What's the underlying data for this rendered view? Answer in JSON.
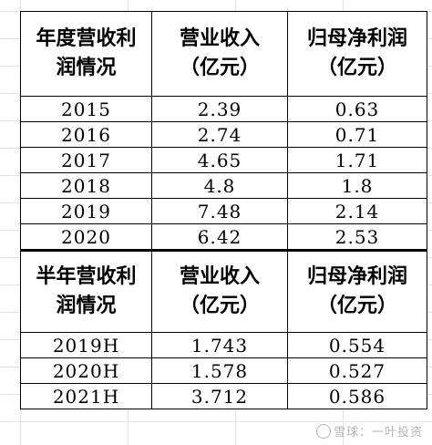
{
  "annual": {
    "headers": [
      "年度营收利润情况",
      "营业收入（亿元）",
      "归母净利润（亿元）"
    ],
    "header_lines": [
      [
        "年度营收利",
        "润情况"
      ],
      [
        "营业收入",
        "（亿元）"
      ],
      [
        "归母净利润",
        "（亿元）"
      ]
    ],
    "rows": [
      [
        "2015",
        "2.39",
        "0.63"
      ],
      [
        "2016",
        "2.74",
        "0.71"
      ],
      [
        "2017",
        "4.65",
        "1.71"
      ],
      [
        "2018",
        "4.8",
        "1.8"
      ],
      [
        "2019",
        "7.48",
        "2.14"
      ],
      [
        "2020",
        "6.42",
        "2.53"
      ]
    ]
  },
  "half_year": {
    "headers": [
      "半年营收利润情况",
      "营业收入（亿元）",
      "归母净利润（亿元）"
    ],
    "header_lines": [
      [
        "半年营收利",
        "润情况"
      ],
      [
        "营业收入",
        "（亿元）"
      ],
      [
        "归母净利润",
        "（亿元）"
      ]
    ],
    "rows": [
      [
        "2019H",
        "1.743",
        "0.554"
      ],
      [
        "2020H",
        "1.578",
        "0.527"
      ],
      [
        "2021H",
        "3.712",
        "0.586"
      ]
    ]
  },
  "watermark": "雪球：一叶投资"
}
